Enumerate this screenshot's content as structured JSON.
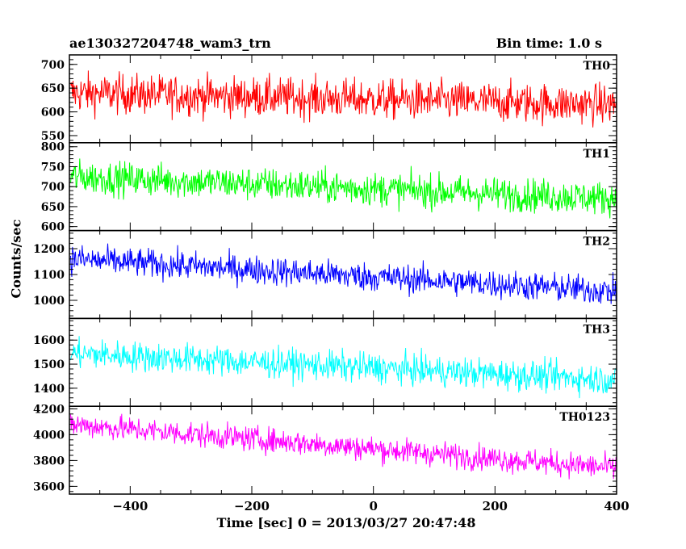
{
  "header": {
    "title_left": "ae130327204748_wam3_trn",
    "title_right": "Bin time: 1.0 s"
  },
  "axes": {
    "xlabel": "Time [sec] 0 = 2013/03/27 20:47:48",
    "ylabel": "Counts/sec"
  },
  "chart_data": {
    "type": "line",
    "x_range": [
      -500,
      400
    ],
    "x_ticks": [
      -400,
      -200,
      0,
      200,
      400
    ],
    "bin_time_s": 1.0,
    "panels": [
      {
        "name": "TH0",
        "color": "#ff0000",
        "ylim": [
          535,
          720
        ],
        "yticks": [
          550,
          600,
          650,
          700
        ],
        "start": 640,
        "end": 615,
        "noise": 30
      },
      {
        "name": "TH1",
        "color": "#00ff00",
        "ylim": [
          590,
          810
        ],
        "yticks": [
          600,
          650,
          700,
          750,
          800
        ],
        "start": 725,
        "end": 670,
        "noise": 30
      },
      {
        "name": "TH2",
        "color": "#0000ff",
        "ylim": [
          930,
          1270
        ],
        "yticks": [
          1000,
          1100,
          1200
        ],
        "start": 1160,
        "end": 1035,
        "noise": 40
      },
      {
        "name": "TH3",
        "color": "#00ffff",
        "ylim": [
          1325,
          1690
        ],
        "yticks": [
          1400,
          1500,
          1600
        ],
        "start": 1545,
        "end": 1435,
        "noise": 45
      },
      {
        "name": "TH0123",
        "color": "#ff00ff",
        "ylim": [
          3540,
          4220
        ],
        "yticks": [
          3600,
          3800,
          4000,
          4200
        ],
        "start": 4080,
        "end": 3740,
        "noise": 70
      }
    ]
  }
}
